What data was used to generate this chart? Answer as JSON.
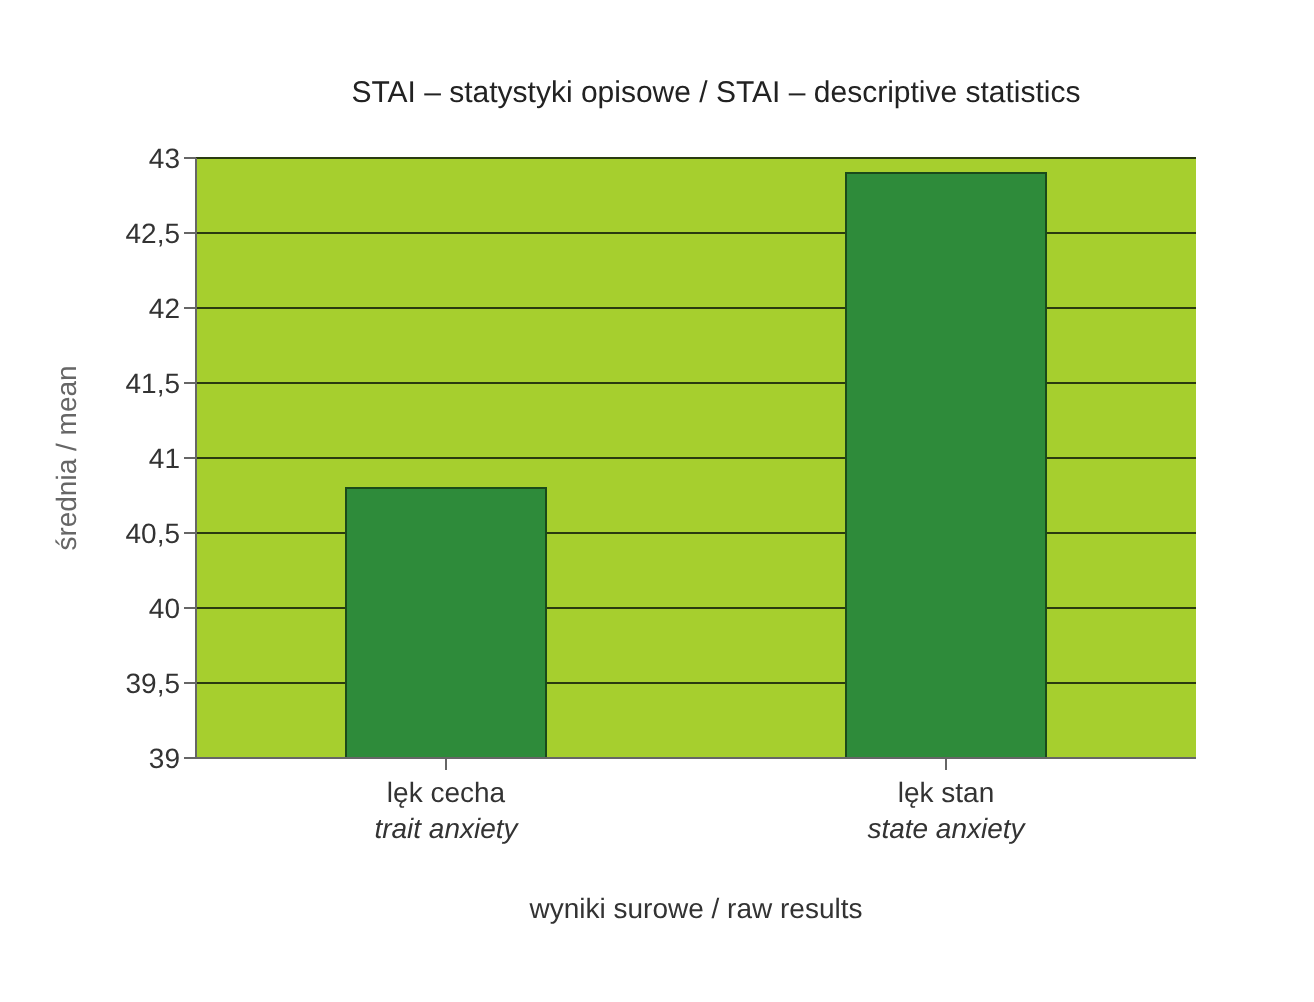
{
  "chart_data": {
    "type": "bar",
    "title": "STAI – statystyki opisowe / STAI – descriptive statistics",
    "xlabel": "wyniki surowe / raw results",
    "ylabel": "średnia / mean",
    "categories": [
      "lęk cecha\ntrait anxiety",
      "lęk stan\nstate anxiety"
    ],
    "values": [
      40.8,
      42.9
    ],
    "color": "#2e8b3a",
    "ylim": [
      39,
      43
    ],
    "yticks": [
      39,
      {
        "value": 39.5,
        "label": "39,5"
      },
      40,
      {
        "value": 40.5,
        "label": "40,5"
      },
      41,
      {
        "value": 41.5,
        "label": "41,5"
      },
      42,
      {
        "value": 42.5,
        "label": "42,5"
      },
      43
    ],
    "grid": "y"
  }
}
